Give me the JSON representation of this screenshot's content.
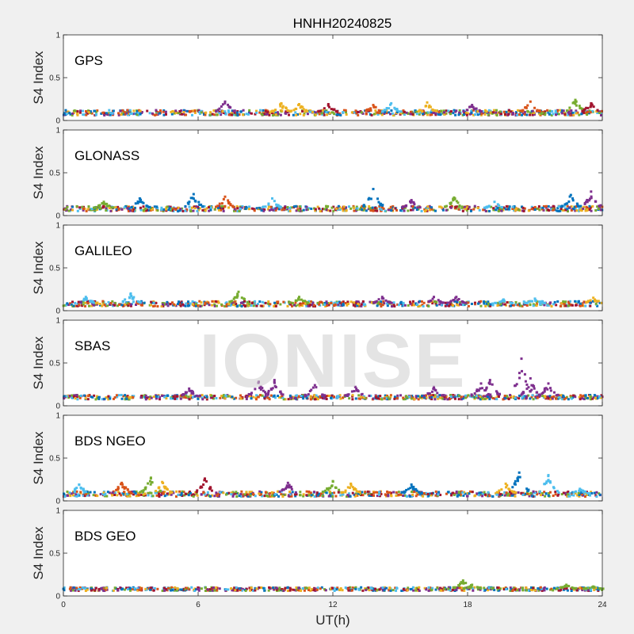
{
  "chart_data": {
    "type": "scatter",
    "title": "HNHH20240825",
    "xlabel": "UT(h)",
    "ylabel": "S4 Index",
    "xlim": [
      0,
      24
    ],
    "ylim": [
      0,
      1
    ],
    "xticks": [
      "0",
      "6",
      "12",
      "18",
      "24"
    ],
    "yticks": [
      "0",
      "0.5",
      "1"
    ],
    "watermark": "IONISE",
    "series_colors": [
      "#0072BD",
      "#D95319",
      "#EDB120",
      "#7E2F8E",
      "#77AC30",
      "#4DBEEE",
      "#A2142F"
    ],
    "panels": [
      {
        "name": "GPS",
        "baseline": 0.09,
        "spread": 0.03,
        "bumps": [
          [
            7.2,
            0.22,
            3
          ],
          [
            9.7,
            0.2,
            2
          ],
          [
            10.5,
            0.19,
            2
          ],
          [
            11.8,
            0.19,
            6
          ],
          [
            13.8,
            0.18,
            1
          ],
          [
            14.6,
            0.2,
            5
          ],
          [
            16.2,
            0.21,
            2
          ],
          [
            18.2,
            0.18,
            3
          ],
          [
            20.8,
            0.22,
            1
          ],
          [
            22.8,
            0.24,
            4
          ],
          [
            23.5,
            0.2,
            6
          ]
        ]
      },
      {
        "name": "GLONASS",
        "baseline": 0.08,
        "spread": 0.03,
        "bumps": [
          [
            1.8,
            0.16,
            4
          ],
          [
            3.4,
            0.2,
            0
          ],
          [
            5.8,
            0.25,
            0
          ],
          [
            7.2,
            0.22,
            1
          ],
          [
            9.3,
            0.2,
            5
          ],
          [
            13.8,
            0.31,
            0
          ],
          [
            15.5,
            0.18,
            3
          ],
          [
            17.4,
            0.21,
            4
          ],
          [
            19.2,
            0.16,
            5
          ],
          [
            22.6,
            0.24,
            0
          ],
          [
            23.5,
            0.28,
            3
          ]
        ]
      },
      {
        "name": "GALILEO",
        "baseline": 0.08,
        "spread": 0.03,
        "bumps": [
          [
            1.0,
            0.16,
            5
          ],
          [
            3.0,
            0.2,
            5
          ],
          [
            7.8,
            0.22,
            4
          ],
          [
            10.5,
            0.16,
            4
          ],
          [
            14.2,
            0.16,
            3
          ],
          [
            16.5,
            0.16,
            3
          ],
          [
            17.5,
            0.16,
            3
          ],
          [
            19.6,
            0.13,
            5
          ],
          [
            21.0,
            0.14,
            5
          ],
          [
            23.6,
            0.15,
            2
          ]
        ]
      },
      {
        "name": "SBAS",
        "baseline": 0.1,
        "spread": 0.025,
        "bumps": [
          [
            5.6,
            0.2,
            3
          ],
          [
            8.7,
            0.28,
            3
          ],
          [
            9.4,
            0.3,
            3
          ],
          [
            11.2,
            0.24,
            3
          ],
          [
            13.0,
            0.22,
            3
          ],
          [
            16.5,
            0.22,
            3
          ],
          [
            18.6,
            0.26,
            3
          ],
          [
            19.0,
            0.3,
            3
          ],
          [
            20.4,
            0.55,
            3
          ],
          [
            20.8,
            0.32,
            3
          ],
          [
            21.6,
            0.26,
            3
          ]
        ]
      },
      {
        "name": "BDS NGEO",
        "baseline": 0.08,
        "spread": 0.03,
        "bumps": [
          [
            0.7,
            0.19,
            5
          ],
          [
            2.6,
            0.21,
            1
          ],
          [
            3.9,
            0.27,
            4
          ],
          [
            4.4,
            0.22,
            2
          ],
          [
            6.3,
            0.26,
            6
          ],
          [
            10.0,
            0.21,
            3
          ],
          [
            12.0,
            0.23,
            4
          ],
          [
            12.8,
            0.2,
            2
          ],
          [
            15.5,
            0.19,
            0
          ],
          [
            19.7,
            0.2,
            2
          ],
          [
            20.3,
            0.33,
            0
          ],
          [
            21.6,
            0.3,
            5
          ],
          [
            23.0,
            0.14,
            5
          ]
        ]
      },
      {
        "name": "BDS GEO",
        "baseline": 0.08,
        "spread": 0.02,
        "bumps": [
          [
            17.8,
            0.18,
            4
          ],
          [
            18.2,
            0.13,
            4
          ],
          [
            22.4,
            0.13,
            4
          ],
          [
            23.6,
            0.11,
            4
          ]
        ]
      }
    ]
  }
}
